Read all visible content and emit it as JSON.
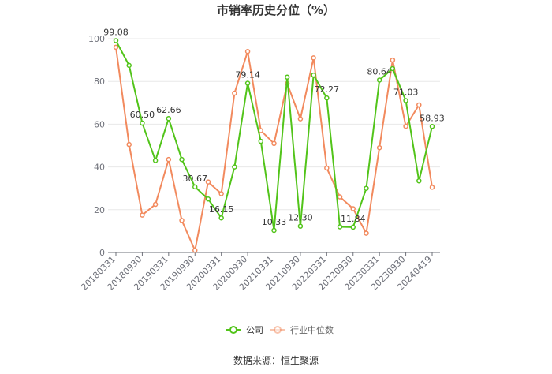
{
  "title": "市销率历史分位（%）",
  "source": "数据来源：恒生聚源",
  "colors": {
    "company": "#52c41a",
    "industry": "#f28a5e",
    "grid": "#e8e8e8",
    "axis": "#6e7079"
  },
  "chart_data": {
    "type": "line",
    "title": "市销率历史分位（%）",
    "ylim": [
      0,
      100
    ],
    "yticks": [
      0,
      20,
      40,
      60,
      80,
      100
    ],
    "legend_position": "bottom",
    "grid": true,
    "x_tick_labels": [
      "20180331",
      "20180930",
      "20190331",
      "20190930",
      "20200331",
      "20200930",
      "20210331",
      "20210930",
      "20220331",
      "20220930",
      "20230331",
      "20230930",
      "20240419"
    ],
    "x": [
      "20180331",
      "20180630",
      "20180930",
      "20181231",
      "20190331",
      "20190630",
      "20190930",
      "20191231",
      "20200331",
      "20200630",
      "20200930",
      "20201231",
      "20210331",
      "20210630",
      "20210930",
      "20211231",
      "20220331",
      "20220630",
      "20220930",
      "20221231",
      "20230331",
      "20230630",
      "20230930",
      "20231231",
      "20240419"
    ],
    "series": [
      {
        "name": "公司",
        "color": "#52c41a",
        "values": [
          99.08,
          87.5,
          60.5,
          43.0,
          62.66,
          43.5,
          30.67,
          25.0,
          16.15,
          40.0,
          79.14,
          52.0,
          10.33,
          82.0,
          12.3,
          83.0,
          72.27,
          12.0,
          11.84,
          30.0,
          80.64,
          86.0,
          71.03,
          33.5,
          58.93
        ],
        "labeled": [
          0,
          2,
          4,
          6,
          8,
          10,
          12,
          14,
          16,
          18,
          20,
          22,
          24
        ]
      },
      {
        "name": "行业中位数",
        "color": "#f28a5e",
        "values": [
          96.0,
          50.5,
          17.5,
          22.5,
          43.5,
          15.0,
          1.0,
          33.0,
          27.5,
          74.5,
          94.0,
          57.0,
          51.0,
          79.0,
          62.5,
          91.0,
          39.5,
          26.0,
          20.5,
          9.0,
          49.0,
          90.0,
          59.0,
          69.0,
          30.5
        ]
      }
    ]
  }
}
